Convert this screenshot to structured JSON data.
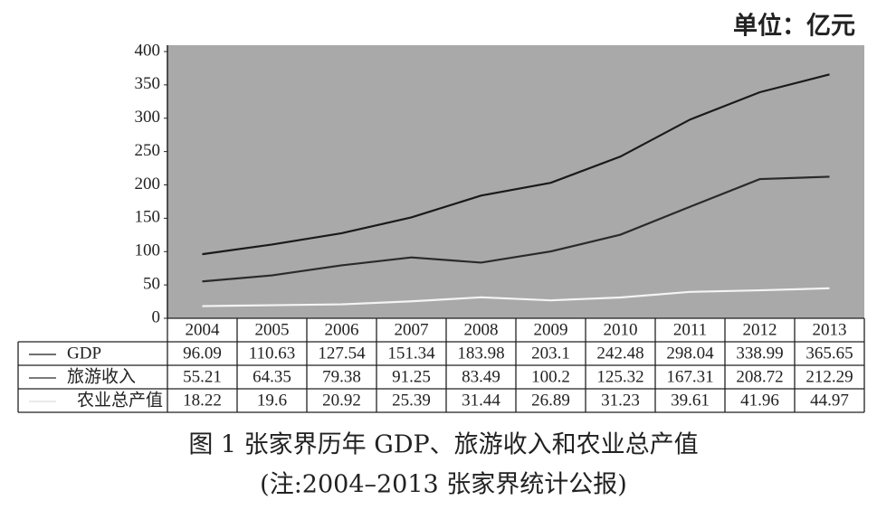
{
  "chart_data": {
    "type": "line",
    "unit": "单位：亿元",
    "title": "图 1 张家界历年 GDP、旅游收入和农业总产值",
    "note": "(注:2004–2013 张家界统计公报)",
    "categories": [
      "2004",
      "2005",
      "2006",
      "2007",
      "2008",
      "2009",
      "2010",
      "2011",
      "2012",
      "2013"
    ],
    "series": [
      {
        "name": "GDP",
        "color": "#1a1a1a",
        "values": [
          96.09,
          110.63,
          127.54,
          151.34,
          183.98,
          203.1,
          242.48,
          298.04,
          338.99,
          365.65
        ]
      },
      {
        "name": "旅游收入",
        "color": "#2a2a2a",
        "values": [
          55.21,
          64.35,
          79.38,
          91.25,
          83.49,
          100.2,
          125.32,
          167.31,
          208.72,
          212.29
        ]
      },
      {
        "name": "农业总产值",
        "color": "#f4f4f4",
        "values": [
          18.22,
          19.6,
          20.92,
          25.39,
          31.44,
          26.89,
          31.23,
          39.61,
          41.96,
          44.97
        ]
      }
    ],
    "ylim": [
      0,
      400
    ],
    "yticks": [
      0,
      50,
      100,
      150,
      200,
      250,
      300,
      350,
      400
    ]
  }
}
